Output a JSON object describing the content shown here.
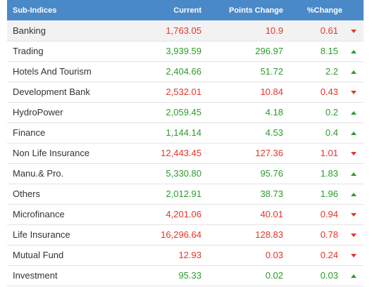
{
  "header": {
    "name": "Sub-Indices",
    "current": "Current",
    "points_change": "Points Change",
    "pct_change": "%Change"
  },
  "colors": {
    "header_bg": "#4a89c8",
    "up": "#2c9b2c",
    "down": "#e8332a"
  },
  "rows": [
    {
      "name": "Banking",
      "current": "1,763.05",
      "points": "10.9",
      "pct": "0.61",
      "dir": "down"
    },
    {
      "name": "Trading",
      "current": "3,939.59",
      "points": "296.97",
      "pct": "8.15",
      "dir": "up"
    },
    {
      "name": "Hotels And Tourism",
      "current": "2,404.66",
      "points": "51.72",
      "pct": "2.2",
      "dir": "up"
    },
    {
      "name": "Development Bank",
      "current": "2,532.01",
      "points": "10.84",
      "pct": "0.43",
      "dir": "down"
    },
    {
      "name": "HydroPower",
      "current": "2,059.45",
      "points": "4.18",
      "pct": "0.2",
      "dir": "up"
    },
    {
      "name": "Finance",
      "current": "1,144.14",
      "points": "4.53",
      "pct": "0.4",
      "dir": "up"
    },
    {
      "name": "Non Life Insurance",
      "current": "12,443.45",
      "points": "127.36",
      "pct": "1.01",
      "dir": "down"
    },
    {
      "name": "Manu.& Pro.",
      "current": "5,330.80",
      "points": "95.76",
      "pct": "1.83",
      "dir": "up"
    },
    {
      "name": "Others",
      "current": "2,012.91",
      "points": "38.73",
      "pct": "1.96",
      "dir": "up"
    },
    {
      "name": "Microfinance",
      "current": "4,201.06",
      "points": "40.01",
      "pct": "0.94",
      "dir": "down"
    },
    {
      "name": "Life Insurance",
      "current": "16,296.64",
      "points": "128.83",
      "pct": "0.78",
      "dir": "down"
    },
    {
      "name": "Mutual Fund",
      "current": "12.93",
      "points": "0.03",
      "pct": "0.24",
      "dir": "down"
    },
    {
      "name": "Investment",
      "current": "95.33",
      "points": "0.02",
      "pct": "0.03",
      "dir": "up"
    }
  ]
}
